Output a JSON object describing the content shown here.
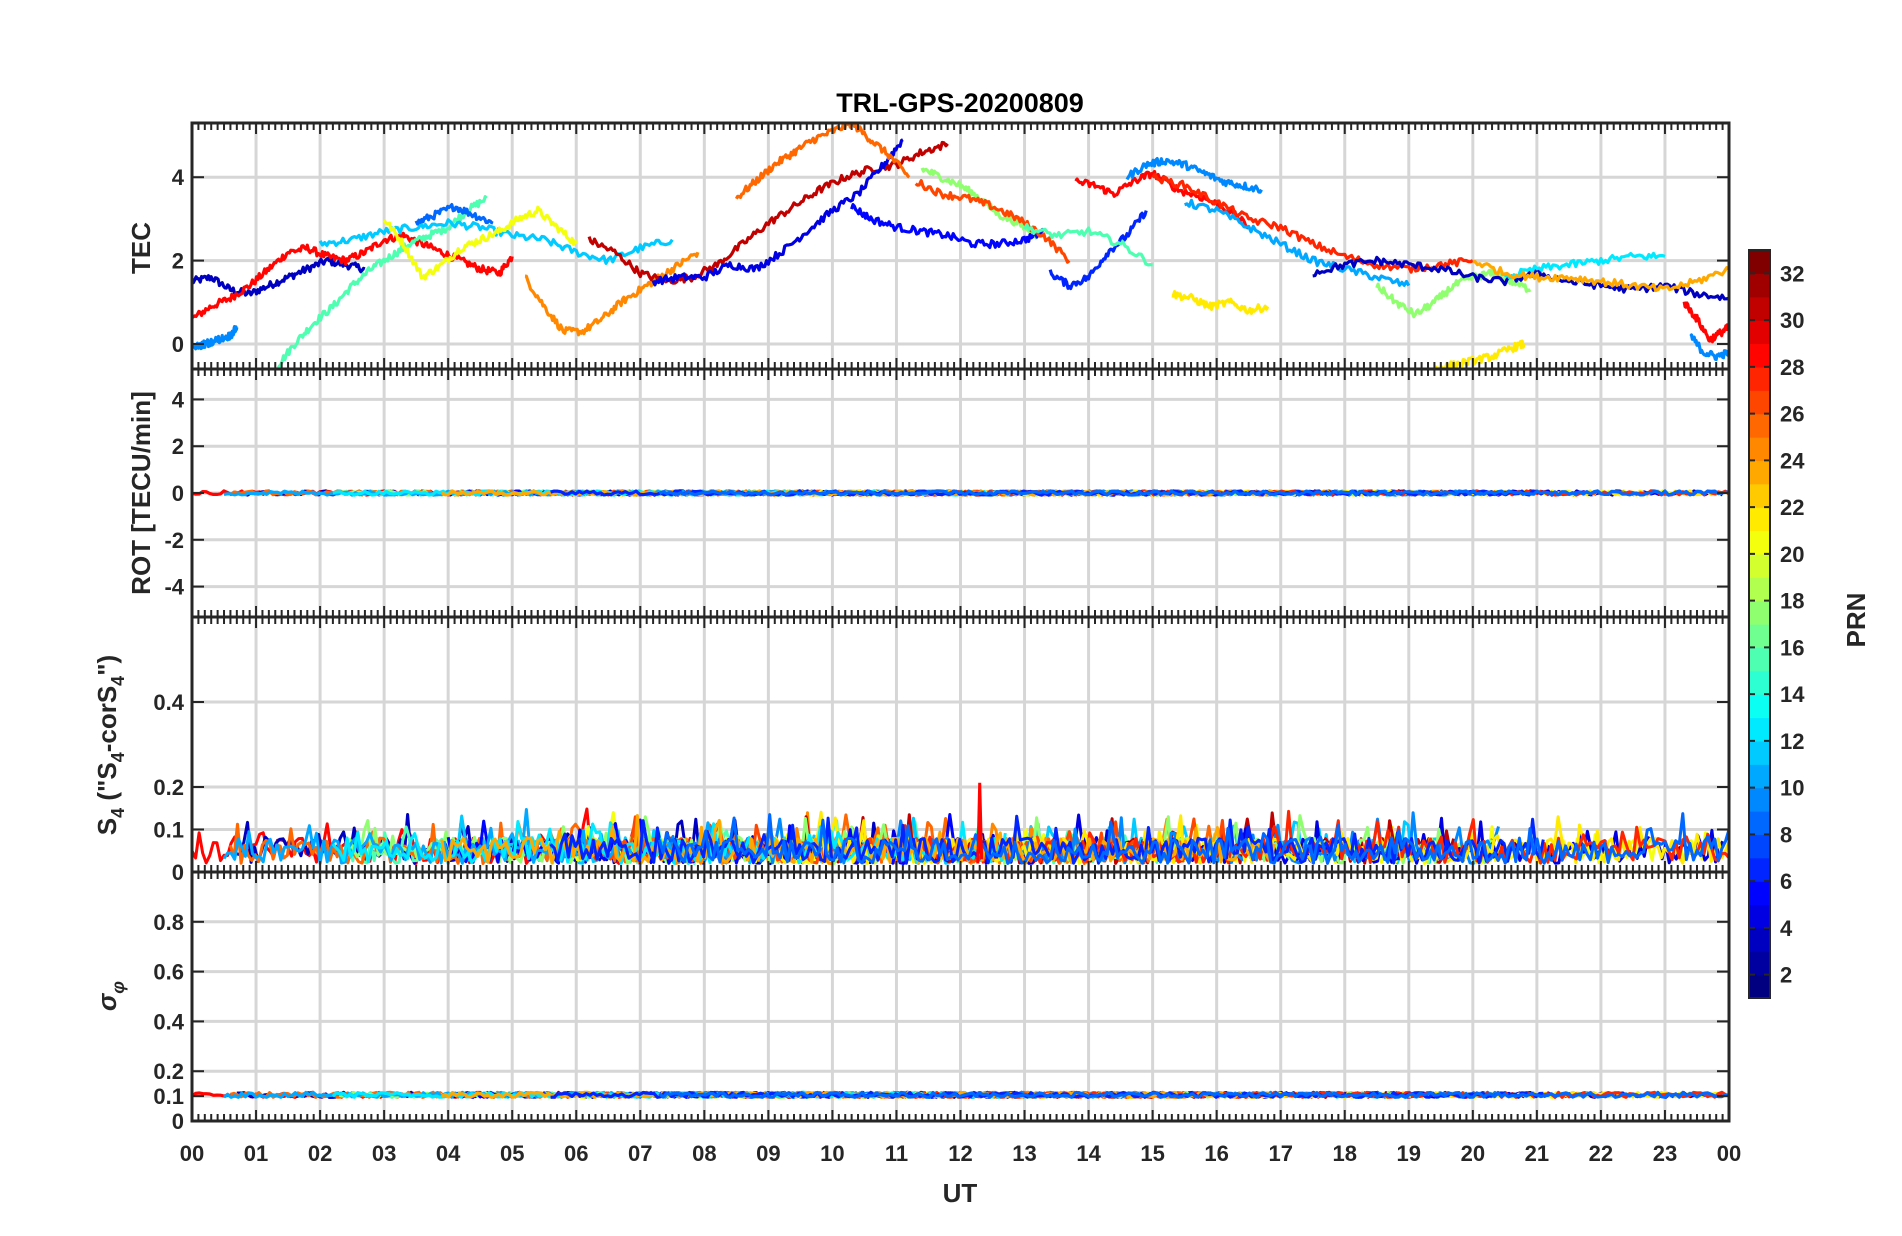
{
  "chart_data": {
    "type": "line",
    "title": "TRL-GPS-20200809",
    "xlabel": "UT",
    "x_tick_labels": [
      "00",
      "01",
      "02",
      "03",
      "04",
      "05",
      "06",
      "07",
      "08",
      "09",
      "10",
      "11",
      "12",
      "13",
      "14",
      "15",
      "16",
      "17",
      "18",
      "19",
      "20",
      "21",
      "22",
      "23",
      "00"
    ],
    "xlim": [
      0,
      24
    ],
    "grid": true,
    "colorbar": {
      "label": "PRN",
      "range": [
        1,
        32
      ],
      "tick_labels": [
        "2",
        "4",
        "6",
        "8",
        "10",
        "12",
        "14",
        "16",
        "18",
        "20",
        "22",
        "24",
        "26",
        "28",
        "30",
        "32"
      ],
      "colormap": "jet"
    },
    "panels": [
      {
        "ylabel": "TEC",
        "ylim": [
          -0.6,
          5.3
        ],
        "y_tick_labels": [
          "0",
          "2",
          "4"
        ],
        "series": [
          {
            "prn": 3,
            "x": [
              0,
              0.3,
              0.6,
              0.9,
              1.2,
              1.5,
              1.8,
              2.1,
              2.4,
              2.7
            ],
            "y": [
              1.5,
              1.6,
              1.3,
              1.2,
              1.4,
              1.6,
              1.8,
              2.0,
              1.9,
              1.8
            ]
          },
          {
            "prn": 28,
            "x": [
              0,
              0.3,
              0.6,
              0.9,
              1.2,
              1.5,
              1.8,
              2.1,
              2.4,
              2.7,
              3.0,
              3.3,
              3.6,
              3.9,
              4.2,
              4.5,
              4.8,
              5.0
            ],
            "y": [
              0.6,
              0.9,
              1.1,
              1.4,
              1.8,
              2.2,
              2.3,
              2.1,
              2.0,
              2.2,
              2.5,
              2.6,
              2.4,
              2.2,
              2.0,
              1.8,
              1.7,
              2.1
            ]
          },
          {
            "prn": 15,
            "x": [
              1.3,
              1.6,
              1.9,
              2.2,
              2.5,
              2.8,
              3.1,
              3.4,
              3.7,
              4.0,
              4.3,
              4.6
            ],
            "y": [
              -0.6,
              0.0,
              0.5,
              0.9,
              1.4,
              1.8,
              2.1,
              2.4,
              2.6,
              2.8,
              3.2,
              3.5
            ]
          },
          {
            "prn": 11,
            "x": [
              2.0,
              2.5,
              3.0,
              3.5,
              4.0,
              4.5,
              5.0,
              5.5,
              6.0,
              6.5,
              7.0,
              7.5
            ],
            "y": [
              2.4,
              2.5,
              2.7,
              2.8,
              2.9,
              2.8,
              2.6,
              2.5,
              2.2,
              2.0,
              2.3,
              2.5
            ]
          },
          {
            "prn": 8,
            "x": [
              3.5,
              3.8,
              4.1,
              4.4,
              4.7
            ],
            "y": [
              2.9,
              3.1,
              3.3,
              3.1,
              2.9
            ]
          },
          {
            "prn": 20,
            "x": [
              3.0,
              3.3,
              3.6,
              3.9,
              4.2,
              4.5,
              4.8,
              5.1,
              5.4,
              5.7,
              6.0
            ],
            "y": [
              3.0,
              2.4,
              1.6,
              1.9,
              2.3,
              2.5,
              2.7,
              3.0,
              3.2,
              2.8,
              2.4
            ]
          },
          {
            "prn": 24,
            "x": [
              5.2,
              5.5,
              5.8,
              6.1,
              6.4,
              6.7,
              7.0,
              7.3,
              7.6,
              7.9
            ],
            "y": [
              1.6,
              0.9,
              0.3,
              0.3,
              0.6,
              1.0,
              1.3,
              1.6,
              1.9,
              2.2
            ]
          },
          {
            "prn": 30,
            "x": [
              6.2,
              6.6,
              7.0,
              7.4,
              7.8,
              8.2,
              8.6,
              9.0,
              9.4,
              9.8,
              10.2,
              10.6,
              11.0,
              11.4,
              11.8
            ],
            "y": [
              2.5,
              2.2,
              1.7,
              1.5,
              1.6,
              1.9,
              2.4,
              2.9,
              3.3,
              3.7,
              4.0,
              4.2,
              4.3,
              4.6,
              4.8
            ]
          },
          {
            "prn": 4,
            "x": [
              7.2,
              7.6,
              8.0,
              8.4,
              8.8,
              9.2,
              9.6,
              10.0,
              10.4,
              10.8,
              11.1
            ],
            "y": [
              1.5,
              1.6,
              1.6,
              1.9,
              1.8,
              2.2,
              2.7,
              3.2,
              3.6,
              4.3,
              4.9
            ]
          },
          {
            "prn": 25,
            "x": [
              8.5,
              8.8,
              9.1,
              9.4,
              9.7,
              10.0,
              10.3,
              10.6,
              10.9,
              11.2
            ],
            "y": [
              3.5,
              3.9,
              4.3,
              4.6,
              4.9,
              5.1,
              5.3,
              4.9,
              4.5,
              4.0
            ]
          },
          {
            "prn": 17,
            "x": [
              11.4,
              11.7,
              12.0,
              12.3,
              12.6,
              12.9,
              13.2
            ],
            "y": [
              4.2,
              4.0,
              3.8,
              3.5,
              3.1,
              2.9,
              2.6
            ]
          },
          {
            "prn": 5,
            "x": [
              10.3,
              10.6,
              11.0,
              11.4,
              11.8,
              12.2,
              12.6,
              13.0,
              13.3
            ],
            "y": [
              3.3,
              3.0,
              2.8,
              2.7,
              2.6,
              2.4,
              2.4,
              2.5,
              2.7
            ]
          },
          {
            "prn": 26,
            "x": [
              11.3,
              11.7,
              12.1,
              12.5,
              12.9,
              13.3,
              13.7
            ],
            "y": [
              3.9,
              3.6,
              3.5,
              3.3,
              3.0,
              2.6,
              2.0
            ]
          },
          {
            "prn": 6,
            "x": [
              13.4,
              13.7,
              14.0,
              14.3,
              14.6,
              14.9
            ],
            "y": [
              1.7,
              1.4,
              1.6,
              2.2,
              2.6,
              3.2
            ]
          },
          {
            "prn": 28,
            "x": [
              13.8,
              14.1,
              14.4,
              14.7,
              15.0,
              15.4,
              15.8,
              16.2,
              16.5
            ],
            "y": [
              3.9,
              3.8,
              3.6,
              3.9,
              4.1,
              3.7,
              3.5,
              3.2,
              2.8
            ]
          },
          {
            "prn": 9,
            "x": [
              14.6,
              14.9,
              15.2,
              15.5,
              15.8,
              16.1,
              16.4,
              16.7
            ],
            "y": [
              4.0,
              4.3,
              4.4,
              4.3,
              4.1,
              3.9,
              3.8,
              3.7
            ]
          },
          {
            "prn": 21,
            "x": [
              15.3,
              15.6,
              15.9,
              16.2,
              16.5,
              16.8
            ],
            "y": [
              1.2,
              1.1,
              0.9,
              1.0,
              0.8,
              0.9
            ]
          },
          {
            "prn": 15,
            "x": [
              13.0,
              13.5,
              14.0,
              14.5,
              15.0
            ],
            "y": [
              2.8,
              2.6,
              2.7,
              2.4,
              1.9
            ]
          },
          {
            "prn": 27,
            "x": [
              15.0,
              15.5,
              16.0,
              16.5,
              17.0,
              17.5,
              18.0,
              18.5,
              19.0,
              19.5,
              20.0
            ],
            "y": [
              4.0,
              3.8,
              3.4,
              3.0,
              2.8,
              2.4,
              2.1,
              1.9,
              1.8,
              1.9,
              2.0
            ]
          },
          {
            "prn": 10,
            "x": [
              15.5,
              16.0,
              16.5,
              17.0,
              17.5,
              18.0,
              18.5,
              19.0
            ],
            "y": [
              3.4,
              3.2,
              2.8,
              2.4,
              2.0,
              1.8,
              1.6,
              1.4
            ]
          },
          {
            "prn": 17,
            "x": [
              18.5,
              18.8,
              19.1,
              19.4,
              19.7,
              20.0,
              20.3,
              20.6,
              20.9
            ],
            "y": [
              1.4,
              1.0,
              0.7,
              1.0,
              1.4,
              1.6,
              1.7,
              1.5,
              1.3
            ]
          },
          {
            "prn": 3,
            "x": [
              17.5,
              18.0,
              18.5,
              19.0,
              19.5,
              20.0,
              20.5,
              21.0,
              21.5,
              22.0,
              22.5,
              23.0,
              23.5,
              24.0
            ],
            "y": [
              1.7,
              1.9,
              2.0,
              1.9,
              1.8,
              1.6,
              1.5,
              1.7,
              1.5,
              1.4,
              1.3,
              1.4,
              1.2,
              1.1
            ]
          },
          {
            "prn": 21,
            "x": [
              19.4,
              19.7,
              20.0,
              20.3,
              20.6,
              20.8
            ],
            "y": [
              -0.6,
              -0.5,
              -0.4,
              -0.3,
              -0.1,
              0.0
            ]
          },
          {
            "prn": 12,
            "x": [
              20.5,
              21.0,
              21.5,
              22.0,
              22.5,
              23.0
            ],
            "y": [
              1.6,
              1.8,
              1.9,
              2.0,
              2.1,
              2.1
            ]
          },
          {
            "prn": 23,
            "x": [
              20.0,
              20.5,
              21.0,
              21.5,
              22.0,
              22.5,
              23.0,
              23.5,
              24.0
            ],
            "y": [
              2.0,
              1.7,
              1.6,
              1.6,
              1.5,
              1.4,
              1.3,
              1.5,
              1.8
            ]
          },
          {
            "prn": 28,
            "x": [
              23.3,
              23.5,
              23.7,
              23.9,
              24.0
            ],
            "y": [
              1.0,
              0.6,
              0.1,
              0.3,
              0.4
            ]
          },
          {
            "prn": 9,
            "x": [
              23.4,
              23.6,
              23.8,
              24.0
            ],
            "y": [
              0.2,
              -0.2,
              -0.3,
              -0.2
            ]
          },
          {
            "prn": 9,
            "x": [
              0,
              0.2,
              0.4,
              0.6,
              0.7
            ],
            "y": [
              -0.1,
              0.0,
              0.1,
              0.2,
              0.4
            ]
          }
        ]
      },
      {
        "ylabel": "ROT [TECU/min]",
        "ylim": [
          -5.3,
          5.3
        ],
        "y_tick_labels": [
          "-4",
          "-2",
          "0",
          "2",
          "4"
        ],
        "summary": "all PRN series stay near 0 TECU/min (within about ±0.2)"
      },
      {
        "ylabel": "S4 (\"S4-corS4\")",
        "ylim": [
          0,
          0.6
        ],
        "y_tick_labels": [
          "0",
          "0.1",
          "0.2",
          "0.4"
        ],
        "summary": "noisy values mostly 0.01–0.12 with spikes to ~0.21 near 12.3 UT"
      },
      {
        "ylabel": "σφ",
        "ylim": [
          0,
          1.0
        ],
        "y_tick_labels": [
          "0",
          "0.1",
          "0.2",
          "0.4",
          "0.6",
          "0.8"
        ],
        "summary": "all PRN series near 0.1 rad (range ~0.09–0.16)"
      }
    ]
  }
}
